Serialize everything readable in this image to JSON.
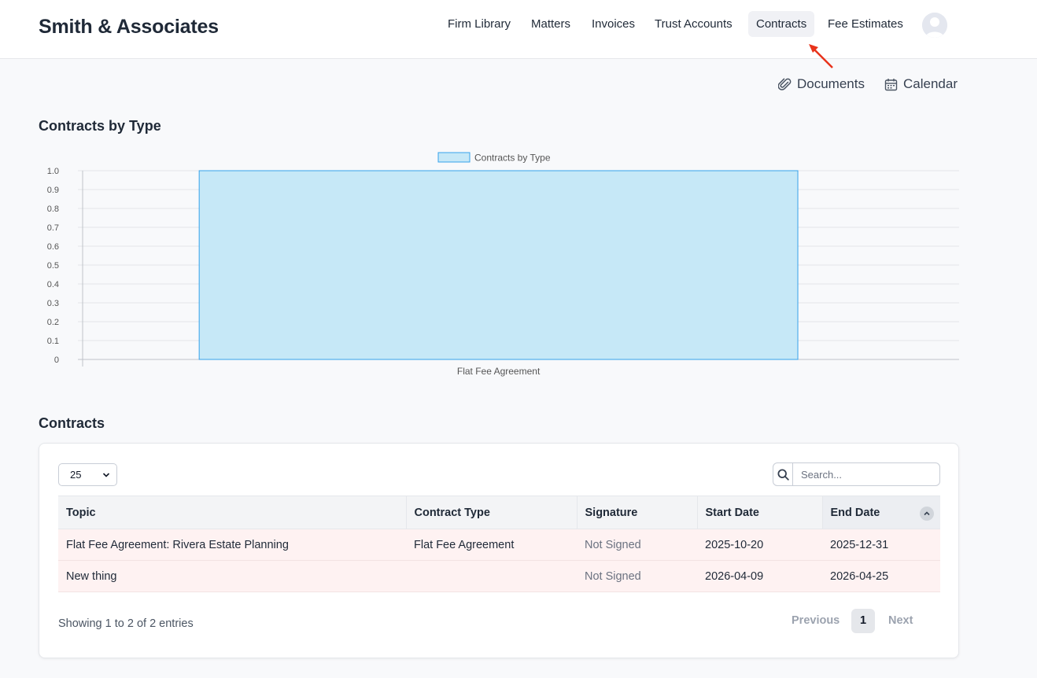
{
  "header": {
    "brand": "Smith & Associates",
    "nav": [
      {
        "label": "Firm Library",
        "active": false
      },
      {
        "label": "Matters",
        "active": false
      },
      {
        "label": "Invoices",
        "active": false
      },
      {
        "label": "Trust Accounts",
        "active": false
      },
      {
        "label": "Contracts",
        "active": true
      },
      {
        "label": "Fee Estimates",
        "active": false
      }
    ],
    "avatar_icon": "user-avatar-icon"
  },
  "actions": {
    "documents_label": "Documents",
    "documents_icon": "paperclip-icon",
    "calendar_label": "Calendar",
    "calendar_icon": "calendar-icon"
  },
  "chart_section": {
    "title": "Contracts by Type"
  },
  "chart_data": {
    "type": "bar",
    "categories": [
      "Flat Fee Agreement"
    ],
    "series": [
      {
        "name": "Contracts by Type",
        "values": [
          1
        ]
      }
    ],
    "ylim": [
      0,
      1.0
    ],
    "yticks": [
      "0",
      "0.1",
      "0.2",
      "0.3",
      "0.4",
      "0.5",
      "0.6",
      "0.7",
      "0.8",
      "0.9",
      "1.0"
    ],
    "grid": true,
    "legend": "top-center",
    "colors": {
      "bar_fill": "#c6e8f7",
      "bar_stroke": "#36a2eb"
    }
  },
  "contracts": {
    "title": "Contracts",
    "page_size": "25",
    "search_placeholder": "Search...",
    "columns": [
      "Topic",
      "Contract Type",
      "Signature",
      "Start Date",
      "End Date"
    ],
    "rows": [
      {
        "topic": "Flat Fee Agreement: Rivera Estate Planning",
        "type": "Flat Fee Agreement",
        "signature": "Not Signed",
        "start": "2025-10-20",
        "end": "2025-12-31"
      },
      {
        "topic": "New thing",
        "type": "",
        "signature": "Not Signed",
        "start": "2026-04-09",
        "end": "2026-04-25"
      }
    ],
    "info": "Showing 1 to 2 of 2 entries",
    "pagination": {
      "previous": "Previous",
      "current": "1",
      "next": "Next"
    }
  },
  "colors": {
    "row_highlight": "#fef2f2",
    "accent_pointer": "#e8331b"
  }
}
